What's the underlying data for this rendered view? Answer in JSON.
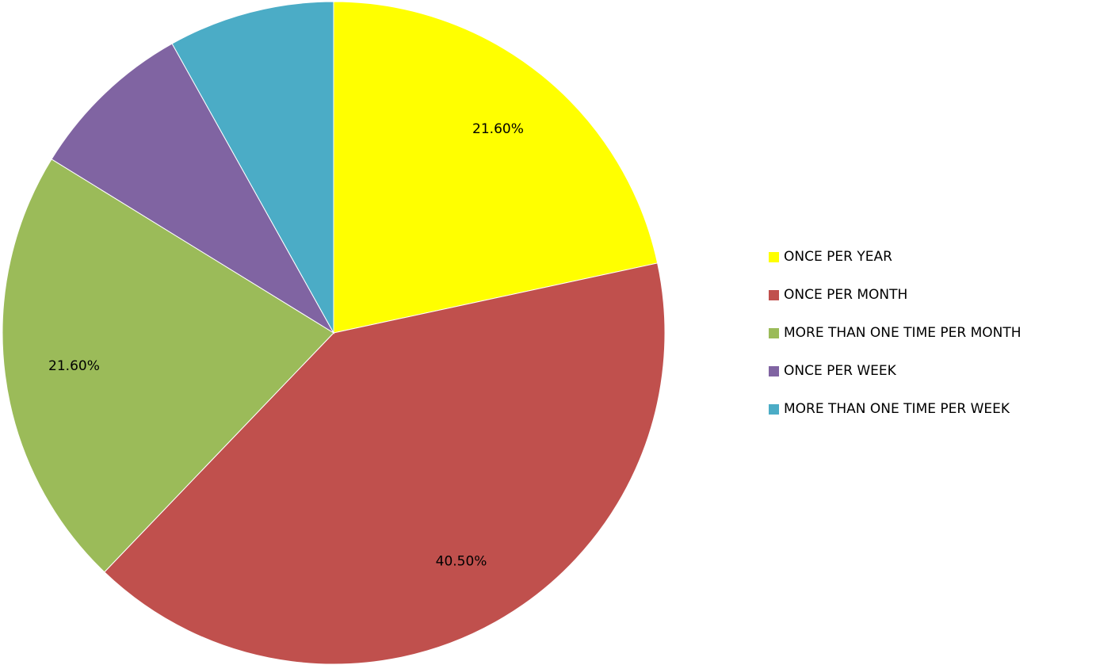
{
  "chart_data": {
    "type": "pie",
    "title": "",
    "categories": [
      "ONCE PER YEAR",
      "ONCE PER MONTH",
      "MORE THAN ONE TIME PER MONTH",
      "ONCE PER WEEK",
      "MORE THAN ONE TIME PER WEEK"
    ],
    "values": [
      21.6,
      40.5,
      21.6,
      8.1,
      8.1
    ],
    "data_labels": [
      "21.60%",
      "40.50%",
      "21.60%",
      "",
      ""
    ],
    "colors": [
      "#ffff00",
      "#c0504d",
      "#9bbb59",
      "#8064a2",
      "#4bacc6"
    ],
    "start": "top, clockwise",
    "legend_position": "right"
  }
}
